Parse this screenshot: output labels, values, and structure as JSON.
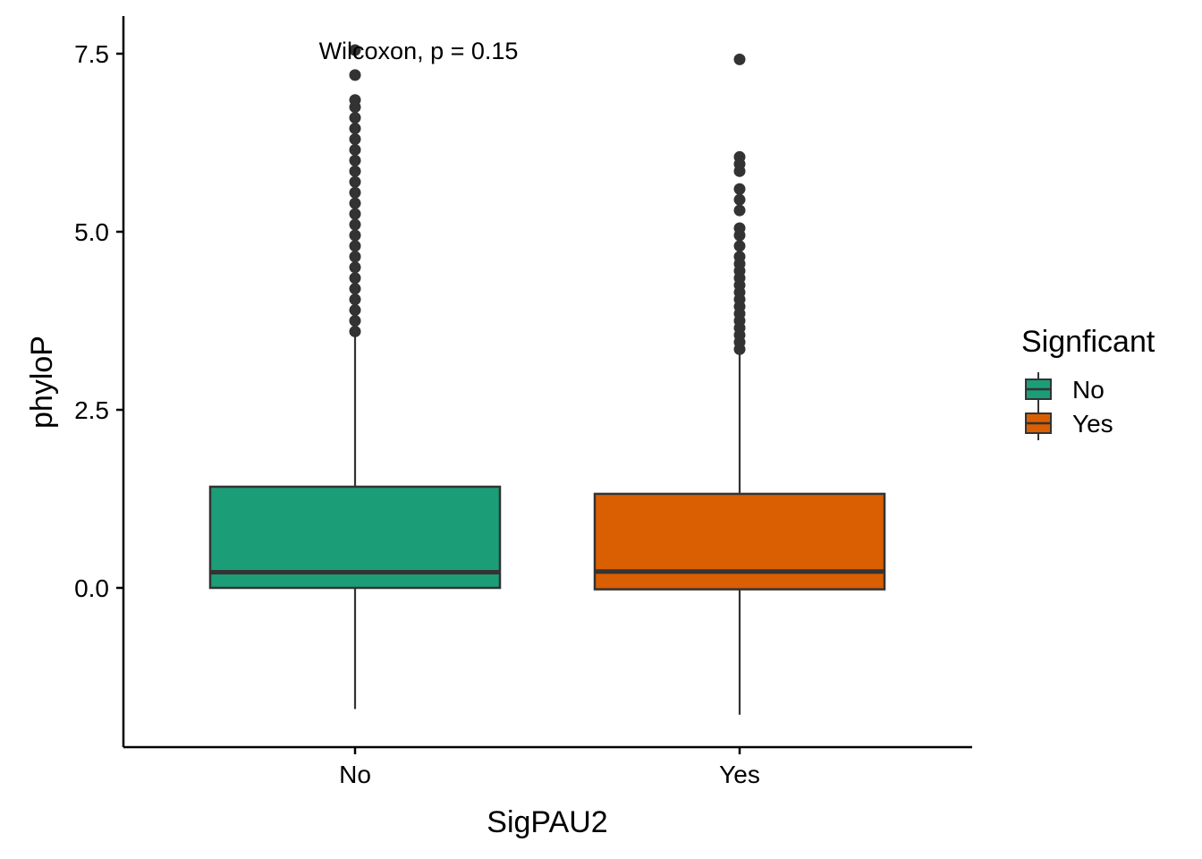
{
  "chart_data": {
    "type": "boxplot",
    "xlabel": "SigPAU2",
    "ylabel": "phyloP",
    "ylim": [
      -2.25,
      7.8
    ],
    "yticks": [
      0.0,
      2.5,
      5.0,
      7.5
    ],
    "ytick_labels": [
      "0.0",
      "2.5",
      "5.0",
      "7.5"
    ],
    "categories": [
      "No",
      "Yes"
    ],
    "annotation": "Wilcoxon, p = 0.15",
    "legend": {
      "title": "Signficant",
      "position": "right",
      "entries": [
        {
          "label": "No",
          "color": "#1b9e77"
        },
        {
          "label": "Yes",
          "color": "#d95f02"
        }
      ]
    },
    "series": [
      {
        "category": "No",
        "color": "#1b9e77",
        "min": -1.7,
        "q1": 0.0,
        "median": 0.22,
        "q3": 1.42,
        "max": 3.55,
        "outliers": [
          3.6,
          3.75,
          3.9,
          4.05,
          4.2,
          4.35,
          4.5,
          4.65,
          4.8,
          4.95,
          5.1,
          5.25,
          5.4,
          5.55,
          5.7,
          5.85,
          6.0,
          6.15,
          6.3,
          6.45,
          6.6,
          6.75,
          6.85,
          7.2,
          7.55
        ]
      },
      {
        "category": "Yes",
        "color": "#d95f02",
        "min": -1.78,
        "q1": -0.02,
        "median": 0.23,
        "q3": 1.32,
        "max": 3.3,
        "outliers": [
          3.35,
          3.45,
          3.55,
          3.65,
          3.75,
          3.85,
          3.95,
          4.05,
          4.15,
          4.25,
          4.35,
          4.45,
          4.55,
          4.65,
          4.8,
          4.95,
          5.05,
          5.3,
          5.45,
          5.6,
          5.85,
          5.95,
          6.05,
          7.42
        ]
      }
    ]
  }
}
